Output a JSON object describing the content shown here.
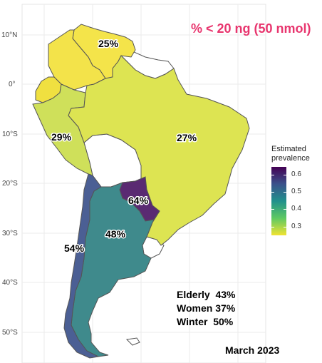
{
  "title": "% < 20 ng (50 nmol)",
  "date_label": "March 2023",
  "axis": {
    "lat_ticks": [
      "10°N",
      "0°",
      "10°S",
      "20°S",
      "30°S",
      "40°S",
      "50°S"
    ]
  },
  "legend": {
    "title_line1": "Estimated",
    "title_line2": "prevalence",
    "ticks": [
      "0.6",
      "0.5",
      "0.4",
      "0.3"
    ],
    "colors": [
      "#440154",
      "#3b528b",
      "#21918c",
      "#5ec962",
      "#f1e332"
    ]
  },
  "regions": {
    "venezuela": {
      "label": "25%",
      "value": 0.25,
      "color": "#f4e44a"
    },
    "colombia": {
      "value": 0.25,
      "color": "#f3e34a"
    },
    "ecuador": {
      "value": 0.26,
      "color": "#f0e040"
    },
    "peru": {
      "label": "29%",
      "value": 0.29,
      "color": "#cfe05a"
    },
    "brazil": {
      "label": "27%",
      "value": 0.27,
      "color": "#dde452"
    },
    "paraguay": {
      "label": "64%",
      "value": 0.64,
      "color": "#5a2a72"
    },
    "argentina": {
      "label": "48%",
      "value": 0.48,
      "color": "#3f8a8c"
    },
    "chile": {
      "label": "54%",
      "value": 0.54,
      "color": "#4b5f94"
    }
  },
  "stats": [
    {
      "text": "Elderly  43%"
    },
    {
      "text": "Women 37%"
    },
    {
      "text": "Winter  50%"
    }
  ]
}
